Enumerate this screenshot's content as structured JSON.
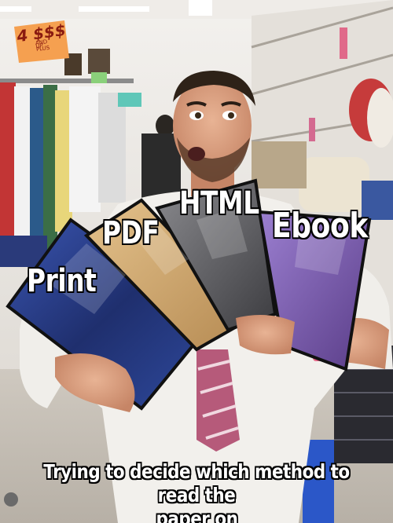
{
  "labels": {
    "print": "Print",
    "pdf": "PDF",
    "html": "HTML",
    "ebook": "Ebook"
  },
  "caption": {
    "line1": "Trying to decide which method to read the",
    "line2": "paper on"
  },
  "store_sign": {
    "price": "4 $$$",
    "sub1": "AND",
    "sub2": "UP",
    "sub3": "PLUS"
  },
  "colors": {
    "caption_text": "#ffffff",
    "caption_outline": "#000000",
    "shirt_box_blue": "#2a3f8f",
    "shirt_box_tan": "#c8a06a",
    "shirt_box_gray": "#6b6b6e",
    "shirt_box_purple": "#7b5aa6",
    "tie_stripe": "#b65a7a",
    "store_wall": "#e9e6e2"
  }
}
